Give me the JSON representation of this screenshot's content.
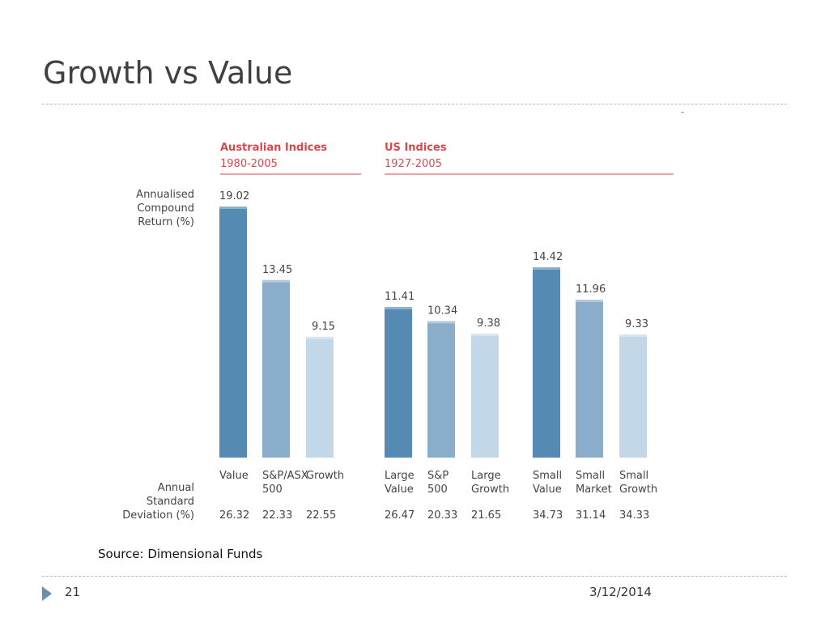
{
  "slide": {
    "title": "Growth vs Value",
    "source": "Source: Dimensional Funds",
    "page_number": "21",
    "date": "3/12/2014"
  },
  "colors": {
    "dark": "#558bb3",
    "mid": "#89adcb",
    "light": "#c2d7e8",
    "accent": "#d6494d",
    "text": "#444444"
  },
  "chart_data": {
    "type": "bar",
    "ylabel": [
      "Annualised",
      "Compound",
      "Return (%)"
    ],
    "sdlabel": [
      "Annual",
      "Standard",
      "Deviation (%)"
    ],
    "groups": [
      {
        "title": "Australian Indices",
        "period": "1980-2005"
      },
      {
        "title": "US Indices",
        "period": "1927-2005"
      }
    ],
    "bars": [
      {
        "group": 0,
        "label": [
          "Value"
        ],
        "value": 19.02,
        "value_label": "19.02",
        "sd": "26.32",
        "shade": "dark"
      },
      {
        "group": 0,
        "label": [
          "S&P/ASX",
          "500"
        ],
        "value": 13.45,
        "value_label": "13.45",
        "sd": "22.33",
        "shade": "mid"
      },
      {
        "group": 0,
        "label": [
          "Growth"
        ],
        "value": 9.15,
        "value_label": "9.15",
        "sd": "22.55",
        "shade": "light"
      },
      {
        "group": 1,
        "label": [
          "Large",
          "Value"
        ],
        "value": 11.41,
        "value_label": "11.41",
        "sd": "26.47",
        "shade": "dark"
      },
      {
        "group": 1,
        "label": [
          "S&P",
          "500"
        ],
        "value": 10.34,
        "value_label": "10.34",
        "sd": "20.33",
        "shade": "mid"
      },
      {
        "group": 1,
        "label": [
          "Large",
          "Growth"
        ],
        "value": 9.38,
        "value_label": "9.38",
        "sd": "21.65",
        "shade": "light"
      },
      {
        "group": 1,
        "label": [
          "Small",
          "Value"
        ],
        "value": 14.42,
        "value_label": "14.42",
        "sd": "34.73",
        "shade": "dark"
      },
      {
        "group": 1,
        "label": [
          "Small",
          "Market"
        ],
        "value": 11.96,
        "value_label": "11.96",
        "sd": "31.14",
        "shade": "mid"
      },
      {
        "group": 1,
        "label": [
          "Small",
          "Growth"
        ],
        "value": 9.33,
        "value_label": "9.33",
        "sd": "34.33",
        "shade": "light"
      }
    ]
  }
}
